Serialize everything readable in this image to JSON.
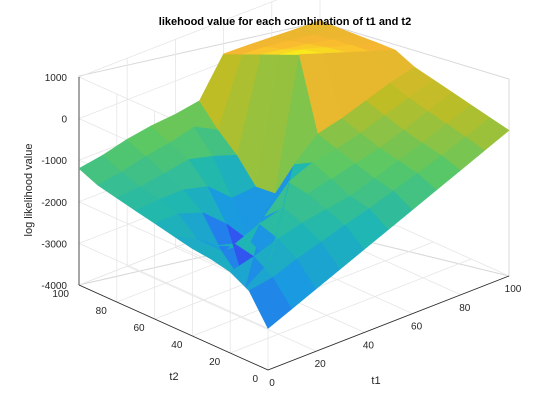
{
  "chart_data": {
    "type": "surface",
    "title": "likehood value for each combination of t1 and t2",
    "xlabel": "t1",
    "ylabel": "t2",
    "zlabel": "log likelihood value",
    "xlim": [
      0,
      100
    ],
    "ylim": [
      0,
      100
    ],
    "zlim": [
      -4000,
      1000
    ],
    "x_ticks": [
      "0",
      "20",
      "40",
      "60",
      "80",
      "100"
    ],
    "y_ticks": [
      "0",
      "20",
      "40",
      "60",
      "80",
      "100"
    ],
    "z_ticks": [
      "-4000",
      "-3000",
      "-2000",
      "-1000",
      "0",
      "1000"
    ],
    "grid": true,
    "colormap": [
      "#3e26a8",
      "#2f5df9",
      "#1a9ae0",
      "#1fb7b2",
      "#5ac864",
      "#bcbd26",
      "#f9b632",
      "#f9fb15"
    ],
    "t1": [
      0,
      10,
      20,
      30,
      40,
      50,
      60,
      70,
      80,
      90,
      100
    ],
    "t2": [
      0,
      10,
      20,
      30,
      40,
      50,
      60,
      70,
      80,
      90,
      100
    ],
    "z_rows_by_t2": [
      [
        -3000,
        -2750,
        -2500,
        -2250,
        -2000,
        -1750,
        -1500,
        -1250,
        -1000,
        -750,
        -500
      ],
      [
        -2300,
        -2200,
        -1980,
        -1800,
        -1620,
        -1450,
        -1250,
        -1050,
        -850,
        -630,
        -400
      ],
      [
        -2050,
        -1900,
        -1700,
        -1550,
        -1450,
        -1350,
        -1150,
        -950,
        -750,
        -520,
        -300
      ],
      [
        -1950,
        -1800,
        -1550,
        -1380,
        -1280,
        -1150,
        -1000,
        -850,
        -650,
        -420,
        -200
      ],
      [
        -1900,
        -2050,
        -2300,
        -1800,
        -1200,
        -950,
        -850,
        -700,
        -500,
        -300,
        -100
      ],
      [
        -1800,
        -2100,
        -2600,
        -3700,
        -3300,
        -1200,
        -700,
        -550,
        -350,
        -150,
        0
      ],
      [
        -1700,
        -1700,
        -1900,
        -2400,
        -3050,
        -2100,
        1000,
        800,
        600,
        400,
        200
      ],
      [
        -1600,
        -1550,
        -1550,
        -1700,
        -2200,
        -2150,
        800,
        700,
        520,
        350,
        180
      ],
      [
        -1500,
        -1450,
        -1350,
        -1250,
        -1400,
        -1600,
        600,
        500,
        400,
        280,
        150
      ],
      [
        -1400,
        -1300,
        -1150,
        -1050,
        -900,
        -1200,
        400,
        350,
        280,
        200,
        120
      ],
      [
        -1200,
        -1100,
        -950,
        -850,
        -800,
        -700,
        200,
        180,
        150,
        120,
        100
      ]
    ]
  }
}
